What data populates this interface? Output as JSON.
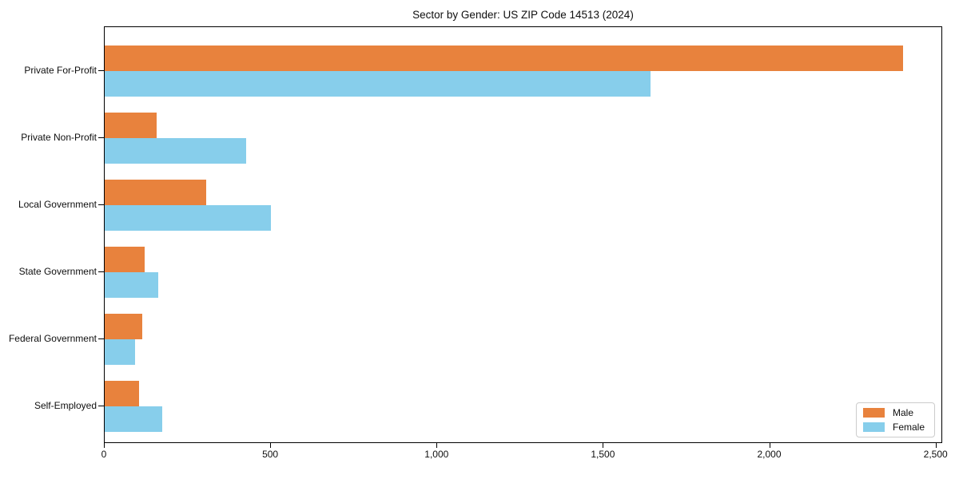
{
  "chart_data": {
    "type": "bar",
    "orientation": "horizontal",
    "title": "Sector by Gender: US ZIP Code 14513 (2024)",
    "categories": [
      "Private For-Profit",
      "Private Non-Profit",
      "Local Government",
      "State Government",
      "Federal Government",
      "Self-Employed"
    ],
    "series": [
      {
        "name": "Male",
        "color": "#e8823d",
        "values": [
          2400,
          155,
          305,
          120,
          112,
          104
        ]
      },
      {
        "name": "Female",
        "color": "#87ceeb",
        "values": [
          1640,
          425,
          500,
          160,
          90,
          173
        ]
      }
    ],
    "xlabel": "",
    "ylabel": "",
    "xlim": [
      0,
      2520
    ],
    "xticks": [
      0,
      500,
      1000,
      1500,
      2000,
      2500
    ],
    "xtick_labels": [
      "0",
      "500",
      "1,000",
      "1,500",
      "2,000",
      "2,500"
    ],
    "grid": false,
    "legend_position": "lower right",
    "background_color": "#ffffff",
    "axis_color": "#000000"
  }
}
